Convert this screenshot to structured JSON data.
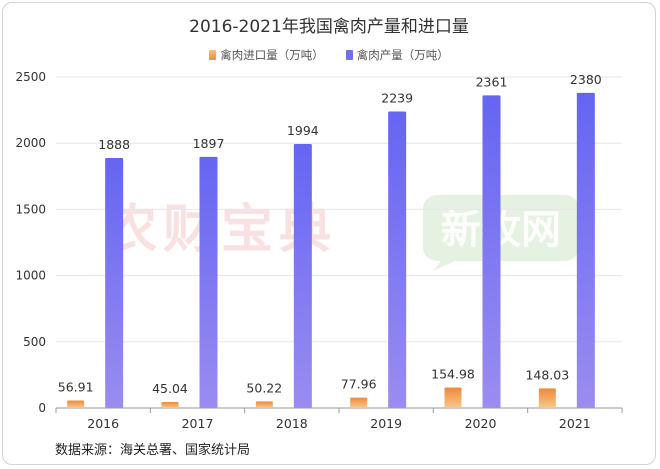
{
  "colors": {
    "import": "#f0a050",
    "production": "#6f6ff0",
    "grid": "#e6e6e6",
    "axis": "#999999"
  },
  "chart_data": {
    "type": "bar",
    "title": "2016-2021年我国禽肉产量和进口量",
    "categories": [
      "2016",
      "2017",
      "2018",
      "2019",
      "2020",
      "2021"
    ],
    "series": [
      {
        "name": "禽肉进口量（万吨）",
        "values": [
          56.91,
          45.04,
          50.22,
          77.96,
          154.98,
          148.03
        ],
        "labels": [
          "56.91",
          "45.04",
          "50.22",
          "77.96",
          "154.98",
          "148.03"
        ]
      },
      {
        "name": "禽肉产量（万吨）",
        "values": [
          1888,
          1897,
          1994,
          2239,
          2361,
          2380
        ],
        "labels": [
          "1888",
          "1897",
          "1994",
          "2239",
          "2361",
          "2380"
        ]
      }
    ],
    "yticks": [
      "0",
      "500",
      "1000",
      "1500",
      "2000",
      "2500"
    ],
    "ylim": [
      0,
      2500
    ],
    "grid": true,
    "legend_position": "top-center"
  },
  "source": "数据来源：海关总署、国家统计局",
  "watermarks": [
    "农财宝典",
    "新牧网"
  ]
}
